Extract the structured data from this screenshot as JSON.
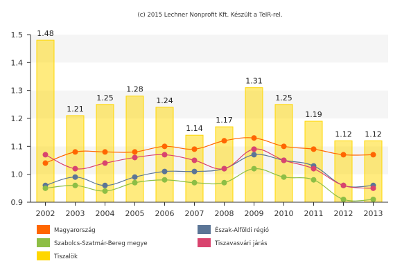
{
  "credit": "(c) 2015 Lechner Nonprofit Kft. Készült a TeIR-rel.",
  "chart_data": {
    "type": "bar",
    "categories": [
      "2002",
      "2003",
      "2004",
      "2005",
      "2006",
      "2007",
      "2008",
      "2009",
      "2010",
      "2011",
      "2012",
      "2013"
    ],
    "ylim": [
      0.9,
      1.5
    ],
    "yticks": [
      "0.9",
      "1.0",
      "1.1",
      "1.2",
      "1.3",
      "1.4",
      "1.5"
    ],
    "grid": "alternating horizontal bands",
    "legend_position": "bottom",
    "bar_series": {
      "name": "Tiszalök",
      "color": "#FFD700",
      "values": [
        1.48,
        1.21,
        1.25,
        1.28,
        1.24,
        1.14,
        1.17,
        1.31,
        1.25,
        1.19,
        1.12,
        1.12
      ],
      "labels": [
        "1.48",
        "1.21",
        "1.25",
        "1.28",
        "1.24",
        "1.14",
        "1.17",
        "1.31",
        "1.25",
        "1.19",
        "1.12",
        "1.12"
      ]
    },
    "line_series": [
      {
        "name": "Magyarország",
        "color": "#FF6600",
        "values": [
          1.04,
          1.08,
          1.08,
          1.08,
          1.1,
          1.09,
          1.12,
          1.13,
          1.1,
          1.09,
          1.07,
          1.07
        ]
      },
      {
        "name": "Észak-Alföldi régió",
        "color": "#5B7596",
        "values": [
          0.96,
          0.99,
          0.96,
          0.99,
          1.01,
          1.01,
          1.02,
          1.07,
          1.05,
          1.03,
          0.96,
          0.96
        ]
      },
      {
        "name": "Szabolcs-Szatmár-Bereg megye",
        "color": "#8DBE45",
        "values": [
          0.95,
          0.96,
          0.94,
          0.97,
          0.98,
          0.97,
          0.97,
          1.02,
          0.99,
          0.98,
          0.91,
          0.91
        ]
      },
      {
        "name": "Tiszavasvári járás",
        "color": "#D9436E",
        "values": [
          1.07,
          1.02,
          1.04,
          1.06,
          1.07,
          1.05,
          1.02,
          1.09,
          1.05,
          1.02,
          0.96,
          0.95
        ]
      }
    ]
  }
}
